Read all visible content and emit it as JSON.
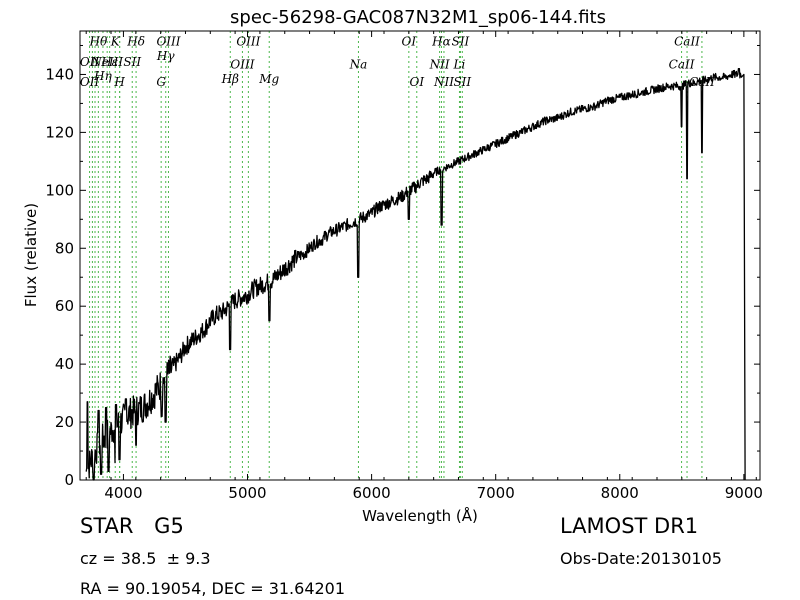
{
  "chart_data": {
    "type": "line",
    "title": "spec-56298-GAC087N32M1_sp06-144.fits",
    "xlabel": "Wavelength (Å)",
    "ylabel": "Flux (relative)",
    "xlim": [
      3650,
      9130
    ],
    "ylim": [
      0,
      155
    ],
    "xticks": [
      4000,
      5000,
      6000,
      7000,
      8000,
      9000
    ],
    "yticks": [
      0,
      20,
      40,
      60,
      80,
      100,
      120,
      140
    ],
    "grid": false,
    "series": [
      {
        "color": "#000000",
        "x": [
          3700,
          3750,
          3800,
          3850,
          3900,
          3950,
          4000,
          4050,
          4100,
          4150,
          4200,
          4250,
          4300,
          4350,
          4400,
          4450,
          4500,
          4550,
          4600,
          4650,
          4700,
          4750,
          4800,
          4850,
          4900,
          4950,
          5000,
          5050,
          5100,
          5150,
          5200,
          5250,
          5300,
          5350,
          5400,
          5450,
          5500,
          5550,
          5600,
          5650,
          5700,
          5750,
          5800,
          5850,
          5900,
          5950,
          6000,
          6050,
          6100,
          6150,
          6200,
          6250,
          6300,
          6350,
          6400,
          6450,
          6500,
          6550,
          6600,
          6650,
          6700,
          6750,
          6800,
          6850,
          6900,
          6950,
          7000,
          7100,
          7200,
          7300,
          7400,
          7500,
          7600,
          7700,
          7800,
          7900,
          8000,
          8100,
          8200,
          8300,
          8400,
          8450,
          8500,
          8550,
          8600,
          8650,
          8700,
          8750,
          8800,
          8850,
          8900,
          8950,
          8980,
          9000,
          9010
        ],
        "y": [
          3,
          8,
          12,
          15,
          17,
          19,
          21,
          23,
          24,
          25,
          27,
          30,
          33,
          36,
          39,
          42,
          46,
          48,
          50,
          52,
          55,
          57,
          58,
          60,
          62,
          63,
          64,
          66,
          67,
          68,
          69,
          71,
          73,
          75,
          77,
          78,
          80,
          82,
          83,
          85,
          86,
          87,
          88,
          89,
          90,
          91,
          92,
          94,
          95,
          96,
          97,
          98,
          100,
          101,
          103,
          104,
          106,
          107,
          108,
          109,
          110,
          111,
          112,
          113,
          114,
          115,
          116,
          118,
          120,
          122,
          124,
          125,
          127,
          128,
          129,
          131,
          132,
          133,
          134,
          135,
          136,
          136,
          136,
          137,
          137,
          138,
          138,
          139,
          139,
          139,
          140,
          140,
          140,
          140,
          0
        ]
      }
    ],
    "absorption_dips": [
      {
        "x": 3760,
        "y": 0
      },
      {
        "x": 3820,
        "y": 2
      },
      {
        "x": 3880,
        "y": 3
      },
      {
        "x": 3934,
        "y": 6
      },
      {
        "x": 3969,
        "y": 7
      },
      {
        "x": 4102,
        "y": 12
      },
      {
        "x": 4308,
        "y": 22
      },
      {
        "x": 4340,
        "y": 20
      },
      {
        "x": 4861,
        "y": 45
      },
      {
        "x": 5175,
        "y": 55
      },
      {
        "x": 5893,
        "y": 70
      },
      {
        "x": 6300,
        "y": 90
      },
      {
        "x": 6563,
        "y": 88
      },
      {
        "x": 8498,
        "y": 122
      },
      {
        "x": 8542,
        "y": 104
      },
      {
        "x": 8662,
        "y": 113
      }
    ],
    "emission_spikes": [
      {
        "x": 3710,
        "y": 27
      },
      {
        "x": 3800,
        "y": 24
      },
      {
        "x": 3860,
        "y": 25
      },
      {
        "x": 3940,
        "y": 26
      },
      {
        "x": 4020,
        "y": 28
      },
      {
        "x": 8960,
        "y": 142
      }
    ],
    "spectral_lines": [
      {
        "x": 3727,
        "labels": [
          {
            "text": "OII",
            "y": 143
          },
          {
            "text": "OII",
            "y": 136
          }
        ]
      },
      {
        "x": 3750,
        "labels": []
      },
      {
        "x": 3771,
        "labels": []
      },
      {
        "x": 3798,
        "labels": [
          {
            "text": "Hθ",
            "y": 150
          }
        ]
      },
      {
        "x": 3835,
        "labels": [
          {
            "text": "Hη",
            "y": 138
          }
        ]
      },
      {
        "x": 3869,
        "labels": [
          {
            "text": "NeIII",
            "y": 143
          }
        ]
      },
      {
        "x": 3889,
        "labels": [
          {
            "text": "Hε",
            "y": 143
          }
        ]
      },
      {
        "x": 3934,
        "labels": [
          {
            "text": "K",
            "y": 150
          }
        ]
      },
      {
        "x": 3969,
        "labels": [
          {
            "text": "H",
            "y": 136
          }
        ]
      },
      {
        "x": 3970,
        "labels": []
      },
      {
        "x": 4071,
        "labels": [
          {
            "text": "SII",
            "y": 143
          }
        ]
      },
      {
        "x": 4102,
        "labels": [
          {
            "text": "Hδ",
            "y": 150
          }
        ]
      },
      {
        "x": 4304,
        "labels": [
          {
            "text": "G",
            "y": 136
          }
        ]
      },
      {
        "x": 4341,
        "labels": [
          {
            "text": "Hγ",
            "y": 145
          }
        ]
      },
      {
        "x": 4363,
        "labels": [
          {
            "text": "OIII",
            "y": 150
          }
        ]
      },
      {
        "x": 4861,
        "labels": [
          {
            "text": "Hβ",
            "y": 137
          }
        ]
      },
      {
        "x": 4959,
        "labels": [
          {
            "text": "OIII",
            "y": 142
          }
        ]
      },
      {
        "x": 5007,
        "labels": [
          {
            "text": "OIII",
            "y": 150
          }
        ]
      },
      {
        "x": 5175,
        "labels": [
          {
            "text": "Mg",
            "y": 137
          }
        ]
      },
      {
        "x": 5894,
        "labels": [
          {
            "text": "Na",
            "y": 142
          }
        ]
      },
      {
        "x": 6300,
        "labels": [
          {
            "text": "OI",
            "y": 150
          }
        ]
      },
      {
        "x": 6364,
        "labels": [
          {
            "text": "OI",
            "y": 136
          }
        ]
      },
      {
        "x": 6548,
        "labels": [
          {
            "text": "NII",
            "y": 142
          }
        ]
      },
      {
        "x": 6563,
        "labels": [
          {
            "text": "Hα",
            "y": 150
          }
        ]
      },
      {
        "x": 6583,
        "labels": [
          {
            "text": "NII",
            "y": 136
          }
        ]
      },
      {
        "x": 6708,
        "labels": [
          {
            "text": "Li",
            "y": 142
          }
        ]
      },
      {
        "x": 6716,
        "labels": [
          {
            "text": "SII",
            "y": 150
          }
        ]
      },
      {
        "x": 6731,
        "labels": [
          {
            "text": "SII",
            "y": 136
          }
        ]
      },
      {
        "x": 8498,
        "labels": [
          {
            "text": "CaII",
            "y": 142
          }
        ]
      },
      {
        "x": 8542,
        "labels": [
          {
            "text": "CaII",
            "y": 150
          }
        ]
      },
      {
        "x": 8662,
        "labels": [
          {
            "text": "CaII",
            "y": 136
          }
        ]
      }
    ]
  },
  "info": {
    "class_label": "STAR",
    "subclass_label": "G5",
    "cz_line": "cz = 38.5  ± 9.3",
    "coords_line": "RA = 90.19054, DEC = 31.64201",
    "survey_label": "LAMOST DR1",
    "obs_date_line": "Obs-Date:20130105"
  },
  "colors": {
    "spectrum": "#000000",
    "line_markers": "#4cb84c",
    "axes": "#000000",
    "background": "#ffffff"
  }
}
